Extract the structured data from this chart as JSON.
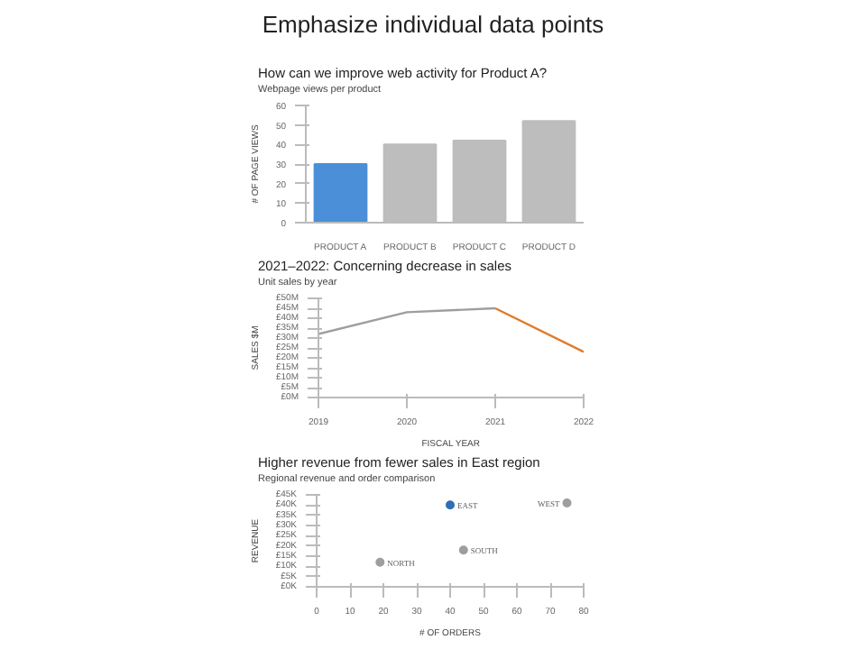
{
  "chart_data": [
    {
      "type": "other",
      "title": "Emphasize individual data points"
    },
    {
      "type": "bar",
      "title": "How can we improve web activity for Product A?",
      "subtitle": "Webpage views per product",
      "ylabel": "# OF PAGE VIEWS",
      "categories": [
        "PRODUCT A",
        "PRODUCT B",
        "PRODUCT C",
        "PRODUCT D"
      ],
      "values": [
        30,
        40,
        42,
        52
      ],
      "colors": [
        "#4a8fd8",
        "#bdbdbd",
        "#bdbdbd",
        "#bdbdbd"
      ],
      "ylim": [
        0,
        60
      ],
      "yticks": [
        0,
        10,
        20,
        30,
        40,
        50,
        60
      ],
      "grid": false
    },
    {
      "type": "line",
      "title": "2021–2022: Concerning decrease in sales",
      "subtitle": "Unit sales by year",
      "ylabel": "SALES $M",
      "xlabel": "FISCAL YEAR",
      "xlim": [
        2019,
        2022
      ],
      "xticks": [
        2019,
        2020,
        2021,
        2022
      ],
      "ylim": [
        0,
        50
      ],
      "yticks": [
        {
          "value": 0,
          "label": "£0M"
        },
        {
          "value": 5,
          "label": "£5M"
        },
        {
          "value": 10,
          "label": "£10M"
        },
        {
          "value": 15,
          "label": "£15M"
        },
        {
          "value": 20,
          "label": "£20M"
        },
        {
          "value": 25,
          "label": "£25M"
        },
        {
          "value": 30,
          "label": "£30M"
        },
        {
          "value": 35,
          "label": "£35M"
        },
        {
          "value": 40,
          "label": "£40M"
        },
        {
          "value": 45,
          "label": "£45M"
        },
        {
          "value": 50,
          "label": "£50M"
        }
      ],
      "grid": false,
      "series": [
        {
          "color": "#9e9e9e",
          "x": [
            2019,
            2020,
            2021
          ],
          "values": [
            32,
            43,
            45
          ]
        },
        {
          "color": "#e07b2a",
          "x": [
            2021,
            2022
          ],
          "values": [
            45,
            23
          ]
        }
      ]
    },
    {
      "type": "scatter",
      "title": "Higher revenue from fewer sales in East region",
      "subtitle": "Regional revenue and order comparison",
      "xlabel": "# OF ORDERS",
      "ylabel": "REVENUE",
      "x": [
        40,
        75,
        44,
        19
      ],
      "values": [
        40,
        41,
        18,
        12
      ],
      "colors": [
        "#2f6fb5",
        "#9e9e9e",
        "#9e9e9e",
        "#9e9e9e"
      ],
      "marker": "circle",
      "xlim": [
        0,
        80
      ],
      "xticks": [
        0,
        10,
        20,
        30,
        40,
        50,
        60,
        70,
        80
      ],
      "ylim": [
        0,
        45
      ],
      "yticks": [
        {
          "value": 0,
          "label": "£0K"
        },
        {
          "value": 5,
          "label": "£5K"
        },
        {
          "value": 10,
          "label": "£10K"
        },
        {
          "value": 15,
          "label": "£15K"
        },
        {
          "value": 20,
          "label": "£20K"
        },
        {
          "value": 25,
          "label": "£25K"
        },
        {
          "value": 30,
          "label": "£30K"
        },
        {
          "value": 35,
          "label": "£35K"
        },
        {
          "value": 40,
          "label": "£40K"
        },
        {
          "value": 45,
          "label": "£45K"
        }
      ],
      "grid": false,
      "annotations": [
        {
          "text": "EAST",
          "x": 40,
          "y": 40
        },
        {
          "text": "WEST",
          "x": 75,
          "y": 41
        },
        {
          "text": "SOUTH",
          "x": 44,
          "y": 18
        },
        {
          "text": "NORTH",
          "x": 19,
          "y": 12
        }
      ]
    }
  ]
}
